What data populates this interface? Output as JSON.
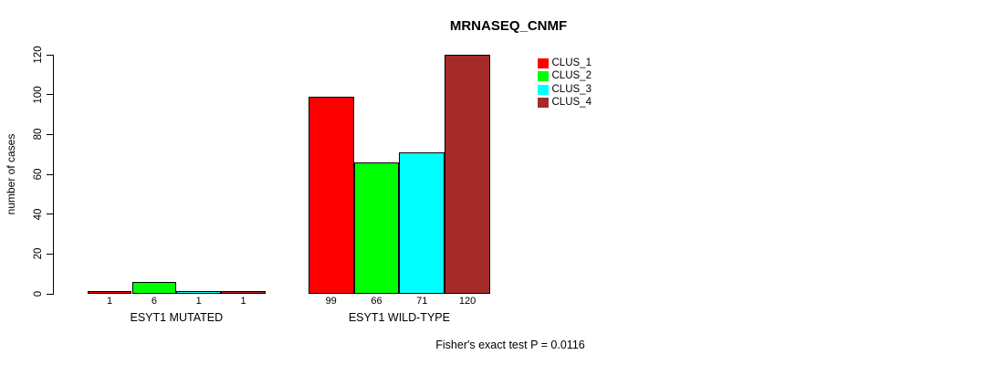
{
  "chart_data": {
    "type": "bar",
    "title": "MRNASEQ_CNMF",
    "xlabel": "",
    "ylabel": "number of cases",
    "ylim": [
      0,
      120
    ],
    "yticks": [
      0,
      20,
      40,
      60,
      80,
      100,
      120
    ],
    "categories": [
      "ESYT1 MUTATED",
      "ESYT1 WILD-TYPE"
    ],
    "series": [
      {
        "name": "CLUS_1",
        "color": "#ff0000",
        "values": [
          1,
          99
        ]
      },
      {
        "name": "CLUS_2",
        "color": "#00ff00",
        "values": [
          6,
          66
        ]
      },
      {
        "name": "CLUS_3",
        "color": "#00ffff",
        "values": [
          1,
          71
        ]
      },
      {
        "name": "CLUS_4",
        "color": "#a52a2a",
        "values": [
          1,
          120
        ]
      }
    ],
    "bar_value_labels_shown": true,
    "legend_position": "top-right",
    "grid": false,
    "annotation": "Fisher's exact test P = 0.0116"
  }
}
